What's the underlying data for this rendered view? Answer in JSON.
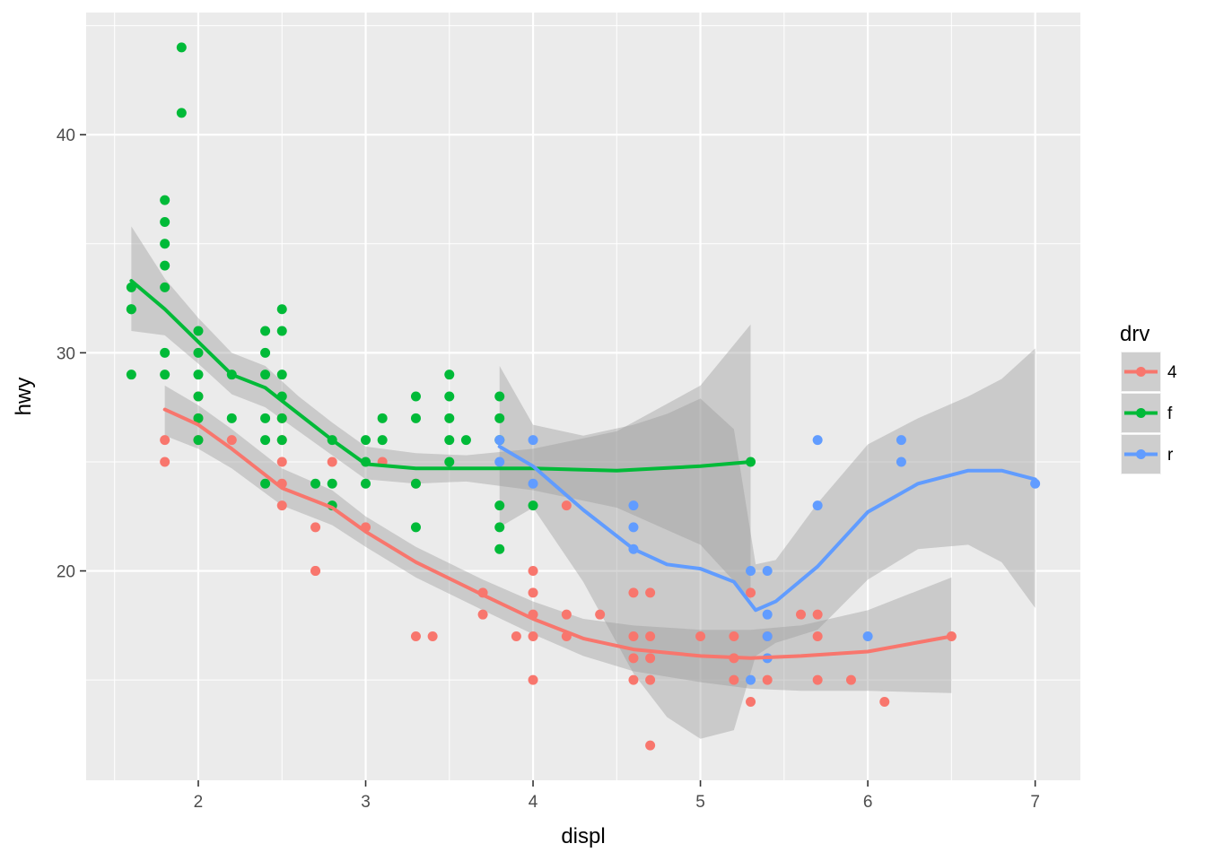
{
  "chart_data": {
    "type": "scatter",
    "xlabel": "displ",
    "ylabel": "hwy",
    "xlim": [
      1.33,
      7.27
    ],
    "ylim": [
      10.4,
      45.6
    ],
    "x_ticks": [
      2,
      3,
      4,
      5,
      6,
      7
    ],
    "y_ticks": [
      20,
      30,
      40
    ],
    "grid": true,
    "legend": {
      "title": "drv",
      "placement": "right",
      "entries": [
        "4",
        "f",
        "r"
      ]
    },
    "colors": {
      "4": "#F8766D",
      "f": "#00BA38",
      "r": "#619CFF",
      "panel": "#EBEBEB",
      "band": "#999999"
    },
    "series": [
      {
        "name": "4",
        "points": [
          [
            1.8,
            26
          ],
          [
            1.8,
            25
          ],
          [
            2.0,
            28
          ],
          [
            2.0,
            27
          ],
          [
            2.0,
            26
          ],
          [
            2.2,
            26
          ],
          [
            2.5,
            27
          ],
          [
            2.5,
            26
          ],
          [
            2.5,
            25
          ],
          [
            2.5,
            24
          ],
          [
            2.5,
            23
          ],
          [
            2.7,
            22
          ],
          [
            2.7,
            20
          ],
          [
            2.7,
            20
          ],
          [
            2.8,
            25
          ],
          [
            3.0,
            22
          ],
          [
            3.1,
            25
          ],
          [
            3.3,
            24
          ],
          [
            3.3,
            17
          ],
          [
            3.4,
            17
          ],
          [
            3.7,
            19
          ],
          [
            3.7,
            18
          ],
          [
            3.9,
            17
          ],
          [
            4.0,
            20
          ],
          [
            4.0,
            19
          ],
          [
            4.0,
            18
          ],
          [
            4.0,
            17
          ],
          [
            4.0,
            15
          ],
          [
            4.2,
            23
          ],
          [
            4.2,
            18
          ],
          [
            4.2,
            17
          ],
          [
            4.4,
            18
          ],
          [
            4.6,
            19
          ],
          [
            4.6,
            17
          ],
          [
            4.6,
            16
          ],
          [
            4.6,
            15
          ],
          [
            4.7,
            19
          ],
          [
            4.7,
            17
          ],
          [
            4.7,
            16
          ],
          [
            4.7,
            15
          ],
          [
            4.7,
            12
          ],
          [
            5.0,
            17
          ],
          [
            5.2,
            17
          ],
          [
            5.2,
            16
          ],
          [
            5.2,
            15
          ],
          [
            5.3,
            19
          ],
          [
            5.3,
            14
          ],
          [
            5.4,
            17
          ],
          [
            5.4,
            15
          ],
          [
            5.6,
            18
          ],
          [
            5.7,
            18
          ],
          [
            5.7,
            17
          ],
          [
            5.7,
            15
          ],
          [
            5.9,
            15
          ],
          [
            6.1,
            14
          ],
          [
            6.5,
            17
          ]
        ],
        "smooth": [
          [
            1.8,
            27.4
          ],
          [
            2.0,
            26.7
          ],
          [
            2.2,
            25.6
          ],
          [
            2.5,
            23.8
          ],
          [
            2.8,
            22.9
          ],
          [
            3.0,
            21.8
          ],
          [
            3.3,
            20.4
          ],
          [
            3.7,
            18.9
          ],
          [
            4.0,
            17.8
          ],
          [
            4.3,
            16.9
          ],
          [
            4.6,
            16.4
          ],
          [
            5.0,
            16.1
          ],
          [
            5.3,
            16.0
          ],
          [
            5.6,
            16.1
          ],
          [
            6.0,
            16.3
          ],
          [
            6.5,
            17.0
          ]
        ],
        "band_upper": [
          [
            1.8,
            28.5
          ],
          [
            2.0,
            27.6
          ],
          [
            2.2,
            26.5
          ],
          [
            2.5,
            24.7
          ],
          [
            2.8,
            23.7
          ],
          [
            3.0,
            22.5
          ],
          [
            3.3,
            21.1
          ],
          [
            3.7,
            19.6
          ],
          [
            4.0,
            18.6
          ],
          [
            4.3,
            17.8
          ],
          [
            4.6,
            17.5
          ],
          [
            5.0,
            17.3
          ],
          [
            5.3,
            17.3
          ],
          [
            5.6,
            17.5
          ],
          [
            6.0,
            18.2
          ],
          [
            6.5,
            19.7
          ]
        ],
        "band_lower": [
          [
            1.8,
            26.2
          ],
          [
            2.0,
            25.6
          ],
          [
            2.2,
            24.7
          ],
          [
            2.5,
            23.0
          ],
          [
            2.8,
            22.1
          ],
          [
            3.0,
            21.1
          ],
          [
            3.3,
            19.7
          ],
          [
            3.7,
            18.2
          ],
          [
            4.0,
            17.1
          ],
          [
            4.3,
            16.1
          ],
          [
            4.6,
            15.4
          ],
          [
            5.0,
            14.9
          ],
          [
            5.3,
            14.6
          ],
          [
            5.6,
            14.5
          ],
          [
            6.0,
            14.5
          ],
          [
            6.5,
            14.4
          ]
        ]
      },
      {
        "name": "f",
        "points": [
          [
            1.6,
            33
          ],
          [
            1.6,
            32
          ],
          [
            1.6,
            32
          ],
          [
            1.6,
            29
          ],
          [
            1.8,
            37
          ],
          [
            1.8,
            36
          ],
          [
            1.8,
            35
          ],
          [
            1.8,
            34
          ],
          [
            1.8,
            33
          ],
          [
            1.8,
            30
          ],
          [
            1.8,
            29
          ],
          [
            1.9,
            44
          ],
          [
            1.9,
            41
          ],
          [
            2.0,
            31
          ],
          [
            2.0,
            30
          ],
          [
            2.0,
            29
          ],
          [
            2.0,
            28
          ],
          [
            2.0,
            27
          ],
          [
            2.0,
            26
          ],
          [
            2.2,
            29
          ],
          [
            2.2,
            27
          ],
          [
            2.4,
            31
          ],
          [
            2.4,
            30
          ],
          [
            2.4,
            29
          ],
          [
            2.4,
            27
          ],
          [
            2.4,
            26
          ],
          [
            2.4,
            24
          ],
          [
            2.5,
            32
          ],
          [
            2.5,
            31
          ],
          [
            2.5,
            29
          ],
          [
            2.5,
            28
          ],
          [
            2.5,
            27
          ],
          [
            2.5,
            26
          ],
          [
            2.7,
            24
          ],
          [
            2.8,
            26
          ],
          [
            2.8,
            24
          ],
          [
            2.8,
            23
          ],
          [
            3.0,
            26
          ],
          [
            3.0,
            25
          ],
          [
            3.0,
            24
          ],
          [
            3.1,
            27
          ],
          [
            3.1,
            26
          ],
          [
            3.3,
            28
          ],
          [
            3.3,
            27
          ],
          [
            3.3,
            24
          ],
          [
            3.3,
            22
          ],
          [
            3.5,
            29
          ],
          [
            3.5,
            28
          ],
          [
            3.5,
            27
          ],
          [
            3.5,
            26
          ],
          [
            3.5,
            25
          ],
          [
            3.6,
            26
          ],
          [
            3.8,
            28
          ],
          [
            3.8,
            27
          ],
          [
            3.8,
            26
          ],
          [
            3.8,
            23
          ],
          [
            3.8,
            22
          ],
          [
            3.8,
            21
          ],
          [
            4.0,
            23
          ],
          [
            5.3,
            25
          ]
        ],
        "smooth": [
          [
            1.6,
            33.3
          ],
          [
            1.8,
            32.0
          ],
          [
            2.0,
            30.5
          ],
          [
            2.2,
            29.0
          ],
          [
            2.4,
            28.4
          ],
          [
            2.6,
            27.2
          ],
          [
            2.8,
            26.0
          ],
          [
            3.0,
            24.9
          ],
          [
            3.3,
            24.7
          ],
          [
            3.6,
            24.7
          ],
          [
            4.0,
            24.7
          ],
          [
            4.5,
            24.6
          ],
          [
            5.0,
            24.8
          ],
          [
            5.3,
            25.0
          ]
        ],
        "band_upper": [
          [
            1.6,
            35.8
          ],
          [
            1.8,
            33.4
          ],
          [
            2.0,
            31.6
          ],
          [
            2.2,
            30.0
          ],
          [
            2.4,
            29.4
          ],
          [
            2.6,
            28.0
          ],
          [
            2.8,
            26.8
          ],
          [
            3.0,
            25.7
          ],
          [
            3.3,
            25.4
          ],
          [
            3.6,
            25.3
          ],
          [
            4.0,
            25.6
          ],
          [
            4.5,
            26.4
          ],
          [
            5.0,
            28.5
          ],
          [
            5.3,
            31.3
          ]
        ],
        "band_lower": [
          [
            1.6,
            31.0
          ],
          [
            1.8,
            30.8
          ],
          [
            2.0,
            29.5
          ],
          [
            2.2,
            28.1
          ],
          [
            2.4,
            27.5
          ],
          [
            2.6,
            26.4
          ],
          [
            2.8,
            25.3
          ],
          [
            3.0,
            24.2
          ],
          [
            3.3,
            24.0
          ],
          [
            3.6,
            24.1
          ],
          [
            4.0,
            23.7
          ],
          [
            4.5,
            22.9
          ],
          [
            5.0,
            21.2
          ],
          [
            5.3,
            18.7
          ]
        ]
      },
      {
        "name": "r",
        "points": [
          [
            3.8,
            26
          ],
          [
            3.8,
            25
          ],
          [
            4.0,
            26
          ],
          [
            4.0,
            24
          ],
          [
            4.6,
            23
          ],
          [
            4.6,
            22
          ],
          [
            4.6,
            21
          ],
          [
            5.3,
            20
          ],
          [
            5.3,
            15
          ],
          [
            5.4,
            20
          ],
          [
            5.4,
            18
          ],
          [
            5.4,
            17
          ],
          [
            5.4,
            16
          ],
          [
            5.7,
            26
          ],
          [
            5.7,
            23
          ],
          [
            6.0,
            17
          ],
          [
            6.2,
            26
          ],
          [
            6.2,
            25
          ],
          [
            7.0,
            24
          ]
        ],
        "smooth": [
          [
            3.8,
            25.7
          ],
          [
            4.0,
            24.8
          ],
          [
            4.3,
            22.8
          ],
          [
            4.6,
            21.0
          ],
          [
            4.8,
            20.3
          ],
          [
            5.0,
            20.1
          ],
          [
            5.2,
            19.5
          ],
          [
            5.33,
            18.2
          ],
          [
            5.45,
            18.6
          ],
          [
            5.7,
            20.2
          ],
          [
            6.0,
            22.7
          ],
          [
            6.3,
            24.0
          ],
          [
            6.6,
            24.6
          ],
          [
            6.8,
            24.6
          ],
          [
            7.0,
            24.2
          ]
        ],
        "band_upper": [
          [
            3.8,
            29.4
          ],
          [
            4.0,
            26.7
          ],
          [
            4.3,
            26.2
          ],
          [
            4.6,
            26.7
          ],
          [
            4.8,
            27.2
          ],
          [
            5.0,
            27.9
          ],
          [
            5.2,
            26.5
          ],
          [
            5.33,
            20.3
          ],
          [
            5.45,
            20.5
          ],
          [
            5.7,
            23.1
          ],
          [
            6.0,
            25.8
          ],
          [
            6.3,
            27.0
          ],
          [
            6.6,
            28.0
          ],
          [
            6.8,
            28.8
          ],
          [
            7.0,
            30.2
          ]
        ],
        "band_lower": [
          [
            3.8,
            22.0
          ],
          [
            4.0,
            22.9
          ],
          [
            4.3,
            19.5
          ],
          [
            4.6,
            15.3
          ],
          [
            4.8,
            13.3
          ],
          [
            5.0,
            12.3
          ],
          [
            5.2,
            12.7
          ],
          [
            5.33,
            16.1
          ],
          [
            5.45,
            16.7
          ],
          [
            5.7,
            17.3
          ],
          [
            6.0,
            19.6
          ],
          [
            6.3,
            21.0
          ],
          [
            6.6,
            21.2
          ],
          [
            6.8,
            20.4
          ],
          [
            7.0,
            18.3
          ]
        ]
      }
    ]
  }
}
